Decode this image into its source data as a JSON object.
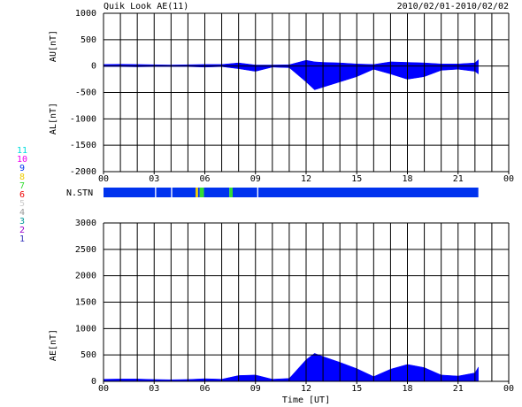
{
  "chart_data": [
    {
      "type": "area",
      "title": "Quik Look AE(11)",
      "subtitle": "2010/02/01-2010/02/02",
      "ylabel_upper": "AU[nT]",
      "ylabel_lower": "AL[nT]",
      "x": [
        0,
        1,
        2,
        3,
        4,
        5,
        6,
        7,
        8,
        9,
        10,
        11,
        12,
        12.5,
        13,
        14,
        15,
        16,
        17,
        18,
        19,
        20,
        21,
        22,
        22.2
      ],
      "series": [
        {
          "color": "#0000ff",
          "values": [
            30,
            35,
            30,
            25,
            20,
            25,
            30,
            30,
            60,
            20,
            20,
            25,
            110,
            80,
            70,
            60,
            40,
            30,
            80,
            70,
            60,
            40,
            40,
            60,
            120
          ]
        },
        {
          "color": "#0000ff",
          "values": [
            -10,
            -10,
            -15,
            -10,
            -10,
            -10,
            -20,
            -10,
            -50,
            -100,
            -20,
            -30,
            -300,
            -450,
            -400,
            -300,
            -200,
            -60,
            -150,
            -250,
            -200,
            -80,
            -60,
            -100,
            -150
          ]
        }
      ],
      "xlim": [
        0,
        24
      ],
      "xticks": [
        {
          "value": 0,
          "label": "00"
        },
        {
          "value": 3,
          "label": "03"
        },
        {
          "value": 6,
          "label": "06"
        },
        {
          "value": 9,
          "label": "09"
        },
        12,
        15,
        18,
        21,
        {
          "value": 24,
          "label": "00"
        }
      ],
      "xgrid": [
        0,
        1,
        2,
        3,
        4,
        5,
        6,
        7,
        8,
        9,
        10,
        11,
        12,
        13,
        14,
        15,
        16,
        17,
        18,
        19,
        20,
        21,
        22,
        23,
        24
      ],
      "ylim": [
        -2000,
        1000
      ],
      "yticks": [
        -2000,
        -1500,
        -1000,
        -500,
        0,
        500,
        1000
      ]
    },
    {
      "type": "strip",
      "label": "N.STN",
      "xlim": [
        0,
        24
      ],
      "segments": [
        {
          "start": 0,
          "end": 3.05,
          "n": 9
        },
        {
          "start": 3.12,
          "end": 4.0,
          "n": 9
        },
        {
          "start": 4.07,
          "end": 5.45,
          "n": 9
        },
        {
          "start": 5.45,
          "end": 5.6,
          "n": 8
        },
        {
          "start": 5.6,
          "end": 5.7,
          "n": 9
        },
        {
          "start": 5.7,
          "end": 5.95,
          "n": 7
        },
        {
          "start": 5.95,
          "end": 7.45,
          "n": 9
        },
        {
          "start": 7.45,
          "end": 7.65,
          "n": 7
        },
        {
          "start": 7.65,
          "end": 9.1,
          "n": 9
        },
        {
          "start": 9.17,
          "end": 22.2,
          "n": 9
        }
      ],
      "legend": [
        {
          "label": 11,
          "color": "#00dddd"
        },
        {
          "label": 10,
          "color": "#ee00ee"
        },
        {
          "label": 9,
          "color": "#0033ee"
        },
        {
          "label": 8,
          "color": "#eecc00"
        },
        {
          "label": 7,
          "color": "#33dd33"
        },
        {
          "label": 6,
          "color": "#ee0000"
        },
        {
          "label": 5,
          "color": "#cccccc"
        },
        {
          "label": 4,
          "color": "#999999"
        },
        {
          "label": 3,
          "color": "#009999"
        },
        {
          "label": 2,
          "color": "#9900cc"
        },
        {
          "label": 1,
          "color": "#3333bb"
        }
      ]
    },
    {
      "type": "area",
      "ylabel": "AE[nT]",
      "xlabel": "Time [UT]",
      "x": [
        0,
        1,
        2,
        3,
        4,
        5,
        6,
        7,
        8,
        9,
        10,
        11,
        12,
        12.5,
        13,
        14,
        15,
        16,
        17,
        18,
        19,
        20,
        21,
        22,
        22.2
      ],
      "series": [
        {
          "color": "#0000ff",
          "values": [
            40,
            45,
            45,
            35,
            30,
            35,
            50,
            40,
            110,
            120,
            40,
            55,
            410,
            530,
            470,
            360,
            240,
            90,
            230,
            320,
            260,
            120,
            100,
            160,
            270
          ]
        }
      ],
      "xlim": [
        0,
        24
      ],
      "xticks": [
        {
          "value": 0,
          "label": "00"
        },
        {
          "value": 3,
          "label": "03"
        },
        {
          "value": 6,
          "label": "06"
        },
        {
          "value": 9,
          "label": "09"
        },
        12,
        15,
        18,
        21,
        {
          "value": 24,
          "label": "00"
        }
      ],
      "xgrid": [
        0,
        1,
        2,
        3,
        4,
        5,
        6,
        7,
        8,
        9,
        10,
        11,
        12,
        13,
        14,
        15,
        16,
        17,
        18,
        19,
        20,
        21,
        22,
        23,
        24
      ],
      "ylim": [
        0,
        3000
      ],
      "yticks": [
        0,
        500,
        1000,
        1500,
        2000,
        2500,
        3000
      ]
    }
  ]
}
